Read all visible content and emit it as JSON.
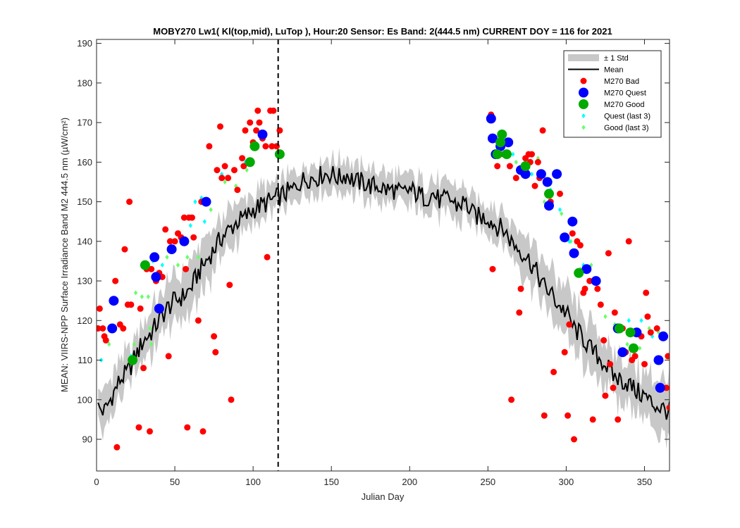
{
  "chart_data": {
    "type": "scatter",
    "title": "MOBY270   Lw1( Kl(top,mid), LuTop ),   Hour:20 Sensor: Es Band: 2(444.5 nm)   CURRENT DOY = 116 for 2021",
    "xlabel": "Julian Day",
    "ylabel": "MEAN: VIIRS-NPP Surface Irradiance Band M2 444.5 nm (µW/cm²)",
    "xlim": [
      0,
      366
    ],
    "ylim": [
      82,
      191
    ],
    "xticks": [
      0,
      50,
      100,
      150,
      200,
      250,
      300,
      350
    ],
    "yticks": [
      90,
      100,
      110,
      120,
      130,
      140,
      150,
      160,
      170,
      180,
      190
    ],
    "current_doy": 116,
    "legend_position": "top-right",
    "colors": {
      "std_band": "#c8c8c8",
      "mean": "#000000",
      "bad": "#ff0000",
      "quest": "#0000ff",
      "good": "#00aa00",
      "quest_last3": "#00ffff",
      "good_last3": "#66ff66"
    },
    "legend": [
      {
        "key": "std",
        "label": "± 1 Std"
      },
      {
        "key": "mean",
        "label": "Mean"
      },
      {
        "key": "bad",
        "label": "M270 Bad"
      },
      {
        "key": "quest",
        "label": "M270 Quest"
      },
      {
        "key": "good",
        "label": "M270 Good"
      },
      {
        "key": "quest_last3",
        "label": "Quest (last 3)"
      },
      {
        "key": "good_last3",
        "label": "Good (last 3)"
      }
    ],
    "series": [
      {
        "name": "M270 Bad",
        "points": [
          [
            1,
            118
          ],
          [
            2,
            123
          ],
          [
            4,
            118
          ],
          [
            5,
            116
          ],
          [
            6,
            115
          ],
          [
            12,
            130
          ],
          [
            13,
            88
          ],
          [
            15,
            119
          ],
          [
            17,
            118
          ],
          [
            18,
            138
          ],
          [
            20,
            124
          ],
          [
            21,
            150
          ],
          [
            22,
            124
          ],
          [
            27,
            93
          ],
          [
            28,
            123
          ],
          [
            30,
            108
          ],
          [
            32,
            133
          ],
          [
            34,
            92
          ],
          [
            35,
            133
          ],
          [
            38,
            130
          ],
          [
            40,
            132
          ],
          [
            42,
            131
          ],
          [
            44,
            143
          ],
          [
            46,
            111
          ],
          [
            47,
            140
          ],
          [
            50,
            140
          ],
          [
            52,
            142
          ],
          [
            54,
            141
          ],
          [
            56,
            146
          ],
          [
            57,
            133
          ],
          [
            58,
            93
          ],
          [
            59,
            146
          ],
          [
            61,
            146
          ],
          [
            62,
            141
          ],
          [
            65,
            120
          ],
          [
            67,
            150
          ],
          [
            68,
            92
          ],
          [
            71,
            150
          ],
          [
            72,
            164
          ],
          [
            75,
            116
          ],
          [
            76,
            112
          ],
          [
            77,
            158
          ],
          [
            79,
            169
          ],
          [
            80,
            156
          ],
          [
            82,
            159
          ],
          [
            84,
            156
          ],
          [
            85,
            129
          ],
          [
            86,
            100
          ],
          [
            88,
            158
          ],
          [
            90,
            153
          ],
          [
            93,
            161
          ],
          [
            94,
            159
          ],
          [
            95,
            168
          ],
          [
            98,
            170
          ],
          [
            100,
            165
          ],
          [
            102,
            168
          ],
          [
            103,
            173
          ],
          [
            104,
            170
          ],
          [
            106,
            166
          ],
          [
            108,
            164
          ],
          [
            109,
            136
          ],
          [
            111,
            173
          ],
          [
            112,
            164
          ],
          [
            113,
            173
          ],
          [
            115,
            164
          ],
          [
            117,
            168
          ],
          [
            252,
            172
          ],
          [
            253,
            133
          ],
          [
            256,
            159
          ],
          [
            260,
            162
          ],
          [
            264,
            159
          ],
          [
            265,
            100
          ],
          [
            268,
            156
          ],
          [
            270,
            122
          ],
          [
            271,
            128
          ],
          [
            274,
            161
          ],
          [
            276,
            162
          ],
          [
            277,
            160
          ],
          [
            278,
            162
          ],
          [
            280,
            154
          ],
          [
            282,
            160
          ],
          [
            283,
            156
          ],
          [
            285,
            168
          ],
          [
            286,
            96
          ],
          [
            290,
            150
          ],
          [
            292,
            107
          ],
          [
            294,
            157
          ],
          [
            296,
            152
          ],
          [
            299,
            112
          ],
          [
            301,
            96
          ],
          [
            302,
            119
          ],
          [
            304,
            142
          ],
          [
            305,
            90
          ],
          [
            307,
            140
          ],
          [
            309,
            139
          ],
          [
            311,
            127
          ],
          [
            312,
            128
          ],
          [
            315,
            130
          ],
          [
            317,
            95
          ],
          [
            320,
            128
          ],
          [
            322,
            124
          ],
          [
            324,
            115
          ],
          [
            325,
            101
          ],
          [
            327,
            137
          ],
          [
            328,
            109
          ],
          [
            330,
            103
          ],
          [
            331,
            122
          ],
          [
            333,
            95
          ],
          [
            336,
            118
          ],
          [
            338,
            112
          ],
          [
            340,
            140
          ],
          [
            342,
            110
          ],
          [
            344,
            111
          ],
          [
            346,
            117
          ],
          [
            348,
            116
          ],
          [
            350,
            109
          ],
          [
            351,
            127
          ],
          [
            352,
            121
          ],
          [
            354,
            117
          ],
          [
            358,
            118
          ],
          [
            362,
            116
          ],
          [
            364,
            103
          ],
          [
            365,
            111
          ],
          [
            366,
            98
          ]
        ]
      },
      {
        "name": "M270 Quest",
        "points": [
          [
            10,
            118
          ],
          [
            11,
            125
          ],
          [
            37,
            136
          ],
          [
            38,
            131
          ],
          [
            40,
            123
          ],
          [
            48,
            138
          ],
          [
            56,
            140
          ],
          [
            70,
            150
          ],
          [
            106,
            167
          ],
          [
            252,
            171
          ],
          [
            253,
            166
          ],
          [
            255,
            162
          ],
          [
            258,
            164
          ],
          [
            263,
            165
          ],
          [
            271,
            158
          ],
          [
            274,
            157
          ],
          [
            284,
            157
          ],
          [
            288,
            155
          ],
          [
            289,
            149
          ],
          [
            294,
            157
          ],
          [
            299,
            141
          ],
          [
            304,
            145
          ],
          [
            305,
            137
          ],
          [
            313,
            133
          ],
          [
            319,
            130
          ],
          [
            333,
            118
          ],
          [
            336,
            112
          ],
          [
            345,
            117
          ],
          [
            359,
            110
          ],
          [
            360,
            103
          ],
          [
            362,
            116
          ]
        ]
      },
      {
        "name": "M270 Good",
        "points": [
          [
            23,
            110
          ],
          [
            31,
            134
          ],
          [
            98,
            160
          ],
          [
            101,
            164
          ],
          [
            117,
            162
          ],
          [
            256,
            162
          ],
          [
            258,
            165
          ],
          [
            259,
            167
          ],
          [
            262,
            162
          ],
          [
            274,
            159
          ],
          [
            289,
            152
          ],
          [
            308,
            132
          ],
          [
            334,
            118
          ],
          [
            341,
            117
          ],
          [
            343,
            113
          ]
        ]
      },
      {
        "name": "Quest (last 3)",
        "points": [
          [
            3,
            110
          ],
          [
            22,
            111
          ],
          [
            36,
            135
          ],
          [
            42,
            134
          ],
          [
            55,
            141
          ],
          [
            60,
            144
          ],
          [
            63,
            150
          ],
          [
            67,
            151
          ],
          [
            69,
            145
          ],
          [
            80,
            157
          ],
          [
            95,
            160
          ],
          [
            266,
            162
          ],
          [
            272,
            159
          ],
          [
            278,
            157
          ],
          [
            290,
            153
          ],
          [
            296,
            148
          ],
          [
            302,
            140
          ],
          [
            311,
            134
          ],
          [
            320,
            128
          ],
          [
            333,
            118
          ],
          [
            340,
            120
          ],
          [
            348,
            120
          ],
          [
            355,
            116
          ]
        ]
      },
      {
        "name": "Good (last 3)",
        "points": [
          [
            8,
            114
          ],
          [
            24,
            114
          ],
          [
            25,
            127
          ],
          [
            29,
            126
          ],
          [
            33,
            126
          ],
          [
            34,
            118
          ],
          [
            35,
            114
          ],
          [
            45,
            136
          ],
          [
            52,
            134
          ],
          [
            58,
            136
          ],
          [
            65,
            136
          ],
          [
            73,
            148
          ],
          [
            82,
            155
          ],
          [
            89,
            154
          ],
          [
            96,
            158
          ],
          [
            99,
            165
          ],
          [
            268,
            160
          ],
          [
            282,
            161
          ],
          [
            286,
            150
          ],
          [
            291,
            149
          ],
          [
            297,
            147
          ],
          [
            303,
            140
          ],
          [
            309,
            133
          ],
          [
            316,
            134
          ],
          [
            325,
            121
          ],
          [
            331,
            119
          ],
          [
            339,
            114
          ],
          [
            347,
            113
          ],
          [
            353,
            118
          ],
          [
            359,
            117
          ]
        ]
      }
    ],
    "mean_anchors": {
      "x": [
        1,
        5,
        10,
        15,
        20,
        25,
        30,
        35,
        40,
        45,
        50,
        55,
        60,
        65,
        70,
        75,
        80,
        85,
        90,
        95,
        100,
        105,
        110,
        115,
        120,
        125,
        130,
        135,
        140,
        145,
        150,
        155,
        160,
        165,
        170,
        175,
        180,
        185,
        190,
        195,
        200,
        205,
        210,
        215,
        220,
        225,
        230,
        235,
        240,
        245,
        250,
        255,
        260,
        265,
        270,
        275,
        280,
        285,
        290,
        295,
        300,
        305,
        310,
        315,
        320,
        325,
        330,
        335,
        340,
        345,
        350,
        355,
        360,
        366
      ],
      "y": [
        98,
        97,
        101,
        105,
        107,
        111,
        115,
        117,
        120,
        123,
        125,
        126,
        128,
        132,
        135,
        138,
        141,
        143,
        145,
        146,
        148,
        149,
        150,
        151,
        152,
        153,
        155,
        156,
        156,
        157,
        157,
        156,
        157,
        155,
        155,
        154,
        154,
        153,
        153,
        152,
        153,
        152,
        151,
        152,
        150,
        151,
        149,
        150,
        147,
        146,
        146,
        144,
        143,
        140,
        138,
        136,
        133,
        129,
        127,
        124,
        122,
        118,
        116,
        113,
        111,
        109,
        106,
        105,
        104,
        102,
        101,
        99,
        98,
        97
      ]
    },
    "std_anchors": [
      5,
      5,
      5,
      5,
      5,
      5,
      5,
      6,
      6,
      6,
      6,
      6,
      6,
      6,
      6,
      5,
      5,
      5,
      5,
      4,
      4,
      4,
      4,
      4,
      4,
      4,
      4,
      4,
      4,
      4,
      4,
      4,
      4,
      4,
      4,
      4,
      4,
      4,
      4,
      4,
      4,
      4,
      4,
      4,
      4,
      4,
      4,
      4,
      4,
      4,
      4,
      5,
      5,
      5,
      5,
      5,
      6,
      6,
      6,
      6,
      6,
      6,
      6,
      6,
      6,
      6,
      6,
      6,
      6,
      6,
      6,
      7,
      7,
      7
    ]
  }
}
